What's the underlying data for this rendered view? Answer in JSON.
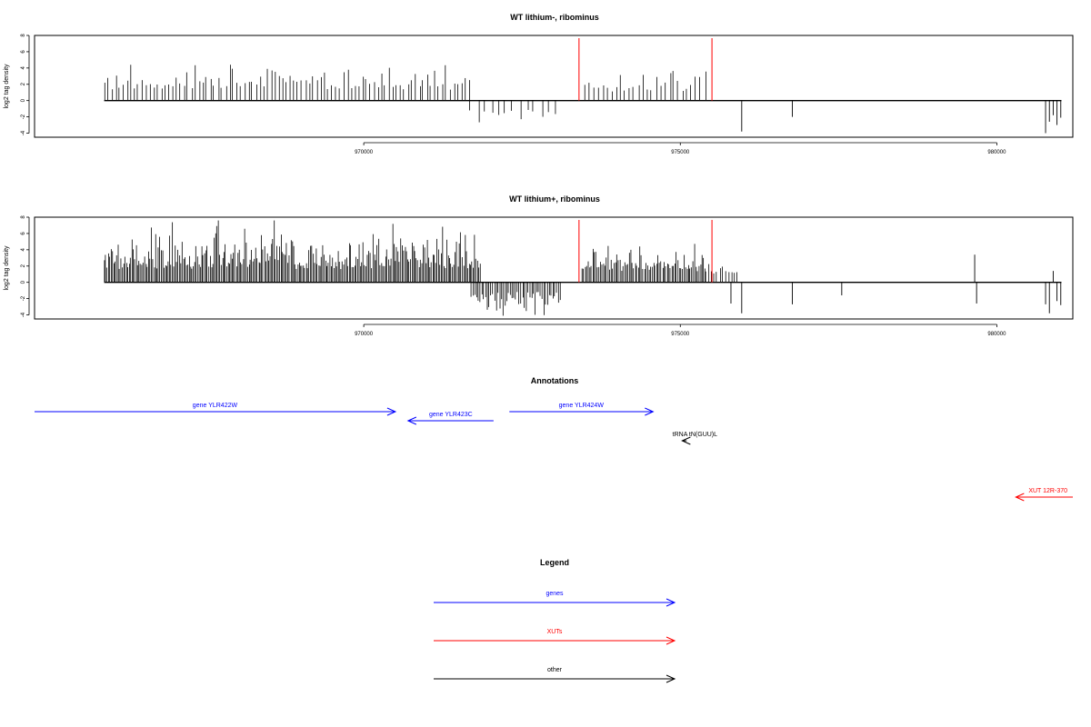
{
  "chart_data": [
    {
      "type": "bar",
      "title": "WT lithium-, ribominus",
      "ylabel": "log2 tag density",
      "xlabel": "",
      "xlim": [
        964800,
        981200
      ],
      "ylim": [
        -4.5,
        8
      ],
      "xticks": [
        970000,
        975000,
        980000
      ],
      "xtick_labels": [
        "970000",
        "975000",
        "980000"
      ],
      "yticks": [
        -4,
        -2,
        0,
        2,
        4,
        6,
        8
      ],
      "ytick_labels": [
        "-4",
        "-2",
        "0",
        "2",
        "4",
        "6",
        "8"
      ],
      "red_lines": [
        973400,
        975500
      ],
      "series": [
        {
          "start": 965900,
          "end": 971700,
          "sign": 1,
          "min": 1.2,
          "max": 4.8,
          "step": 60,
          "seed": 3
        },
        {
          "start": 971700,
          "end": 973100,
          "sign": -1,
          "min": 0.8,
          "max": 3.8,
          "step": 110,
          "seed": 11
        },
        {
          "start": 973500,
          "end": 975400,
          "sign": 1,
          "min": 1.0,
          "max": 4.3,
          "step": 70,
          "seed": 17
        }
      ],
      "spikes": [
        {
          "x": 975970,
          "y": -3.8
        },
        {
          "x": 976770,
          "y": -2.0
        },
        {
          "x": 980770,
          "y": -4.0
        },
        {
          "x": 980830,
          "y": -2.6
        },
        {
          "x": 980890,
          "y": -1.8
        },
        {
          "x": 980950,
          "y": -3.0
        },
        {
          "x": 981010,
          "y": -2.1
        }
      ]
    },
    {
      "type": "bar",
      "title": "WT lithium+, ribominus",
      "ylabel": "log2 tag density",
      "xlabel": "",
      "xlim": [
        964800,
        981200
      ],
      "ylim": [
        -4.5,
        8
      ],
      "xticks": [
        970000,
        975000,
        980000
      ],
      "xtick_labels": [
        "970000",
        "975000",
        "980000"
      ],
      "yticks": [
        -4,
        -2,
        0,
        2,
        4,
        6,
        8
      ],
      "ytick_labels": [
        "-4",
        "-2",
        "0",
        "2",
        "4",
        "6",
        "8"
      ],
      "red_lines": [
        973400,
        975500
      ],
      "series": [
        {
          "start": 965900,
          "end": 971850,
          "sign": 1,
          "min": 1.5,
          "max": 7.6,
          "step": 22,
          "seed": 5
        },
        {
          "start": 971700,
          "end": 973100,
          "sign": -1,
          "min": 1.0,
          "max": 4.1,
          "step": 28,
          "seed": 13
        },
        {
          "start": 973450,
          "end": 975400,
          "sign": 1,
          "min": 1.2,
          "max": 4.8,
          "step": 24,
          "seed": 19
        },
        {
          "start": 975400,
          "end": 975900,
          "sign": 1,
          "min": 0.8,
          "max": 3.0,
          "step": 45,
          "seed": 23
        }
      ],
      "spikes": [
        {
          "x": 975800,
          "y": -2.6
        },
        {
          "x": 975970,
          "y": -3.8
        },
        {
          "x": 976770,
          "y": -2.7
        },
        {
          "x": 977550,
          "y": -1.6
        },
        {
          "x": 979650,
          "y": 3.4
        },
        {
          "x": 979680,
          "y": -2.6
        },
        {
          "x": 980770,
          "y": -2.7
        },
        {
          "x": 980830,
          "y": -3.8
        },
        {
          "x": 980890,
          "y": 1.4
        },
        {
          "x": 980950,
          "y": -2.3
        },
        {
          "x": 981010,
          "y": -2.8
        }
      ]
    }
  ],
  "annotations": {
    "title": "Annotations",
    "items": [
      {
        "label": "gene YLR422W",
        "start": 964800,
        "end": 970500,
        "dir": 1,
        "row": 0,
        "color": "#0000ff"
      },
      {
        "label": "gene YLR423C",
        "start": 970700,
        "end": 972050,
        "dir": -1,
        "row": 1,
        "color": "#0000ff"
      },
      {
        "label": "gene YLR424W",
        "start": 972300,
        "end": 974570,
        "dir": 1,
        "row": 0,
        "color": "#0000ff"
      },
      {
        "label": "tRNA tN(GUU)L",
        "start": 975030,
        "end": 975100,
        "dir": -1,
        "row": 2,
        "color": "#000000"
      },
      {
        "label": "XUT 12R-370",
        "start": 980300,
        "end": 981200,
        "dir": -1,
        "row": 3,
        "color": "#ff0000"
      }
    ]
  },
  "legend": {
    "title": "Legend",
    "items": [
      {
        "label": "genes",
        "color": "#0000ff"
      },
      {
        "label": "XUTs",
        "color": "#ff0000"
      },
      {
        "label": "other",
        "color": "#000000"
      }
    ]
  }
}
